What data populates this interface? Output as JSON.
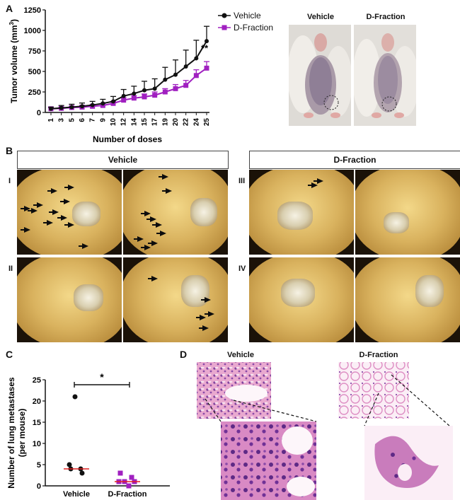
{
  "panels": {
    "A": "A",
    "B": "B",
    "C": "C",
    "D": "D"
  },
  "panelA": {
    "ylabel": "Tumor volume (mm",
    "ylabel_sup": "3",
    "ylabel_end": ")",
    "xlabel": "Number of doses",
    "significance": "**",
    "legend": {
      "vehicle": "Vehicle",
      "dfraction": "D-Fraction"
    },
    "photo_labels": {
      "vehicle": "Vehicle",
      "dfraction": "D-Fraction"
    }
  },
  "panelB": {
    "group_labels": {
      "vehicle": "Vehicle",
      "dfraction": "D-Fraction"
    },
    "roman": {
      "I": "I",
      "II": "II",
      "III": "III",
      "IV": "IV"
    }
  },
  "panelC": {
    "ylabel_line1": "Number of lung metastases",
    "ylabel_line2": "(per mouse)",
    "significance": "*",
    "categories": [
      "Vehicle",
      "D-Fraction"
    ]
  },
  "panelD": {
    "labels": {
      "vehicle": "Vehicle",
      "dfraction": "D-Fraction"
    }
  },
  "colors": {
    "vehicle": "#111111",
    "dfraction": "#a020c0",
    "median": "#e02020"
  },
  "chart_data": [
    {
      "type": "line",
      "x": [
        1,
        3,
        5,
        6,
        7,
        9,
        10,
        12,
        14,
        15,
        17,
        19,
        20,
        22,
        24,
        25
      ],
      "xticks": [
        "1",
        "3",
        "5",
        "6",
        "7",
        "9",
        "10",
        "12",
        "14",
        "15",
        "17",
        "19",
        "20",
        "22",
        "24",
        "25"
      ],
      "ylim": [
        0,
        1250
      ],
      "yticks": [
        "0",
        "250",
        "500",
        "750",
        "1000",
        "1250"
      ],
      "series": [
        {
          "name": "Vehicle",
          "values": [
            45,
            55,
            65,
            75,
            90,
            110,
            135,
            200,
            230,
            270,
            290,
            400,
            460,
            560,
            660,
            870
          ],
          "err": [
            20,
            30,
            35,
            40,
            45,
            50,
            60,
            80,
            90,
            110,
            120,
            150,
            180,
            200,
            220,
            180
          ]
        },
        {
          "name": "D-Fraction",
          "values": [
            45,
            50,
            60,
            65,
            75,
            85,
            110,
            150,
            175,
            190,
            210,
            250,
            290,
            330,
            450,
            540
          ],
          "err": [
            10,
            15,
            15,
            20,
            20,
            25,
            25,
            30,
            30,
            35,
            40,
            40,
            50,
            60,
            70,
            80
          ]
        }
      ],
      "xlabel": "Number of doses",
      "ylabel": "Tumor volume (mm3)"
    },
    {
      "type": "scatter",
      "categories": [
        "Vehicle",
        "D-Fraction"
      ],
      "ylim": [
        0,
        25
      ],
      "yticks": [
        "0",
        "5",
        "10",
        "15",
        "20",
        "25"
      ],
      "series": [
        {
          "name": "Vehicle",
          "values": [
            21,
            5,
            4,
            4,
            3
          ],
          "median": 4
        },
        {
          "name": "D-Fraction",
          "values": [
            3,
            2,
            1,
            1,
            1,
            0
          ],
          "median": 1
        }
      ],
      "ylabel": "Number of lung metastases (per mouse)"
    }
  ]
}
